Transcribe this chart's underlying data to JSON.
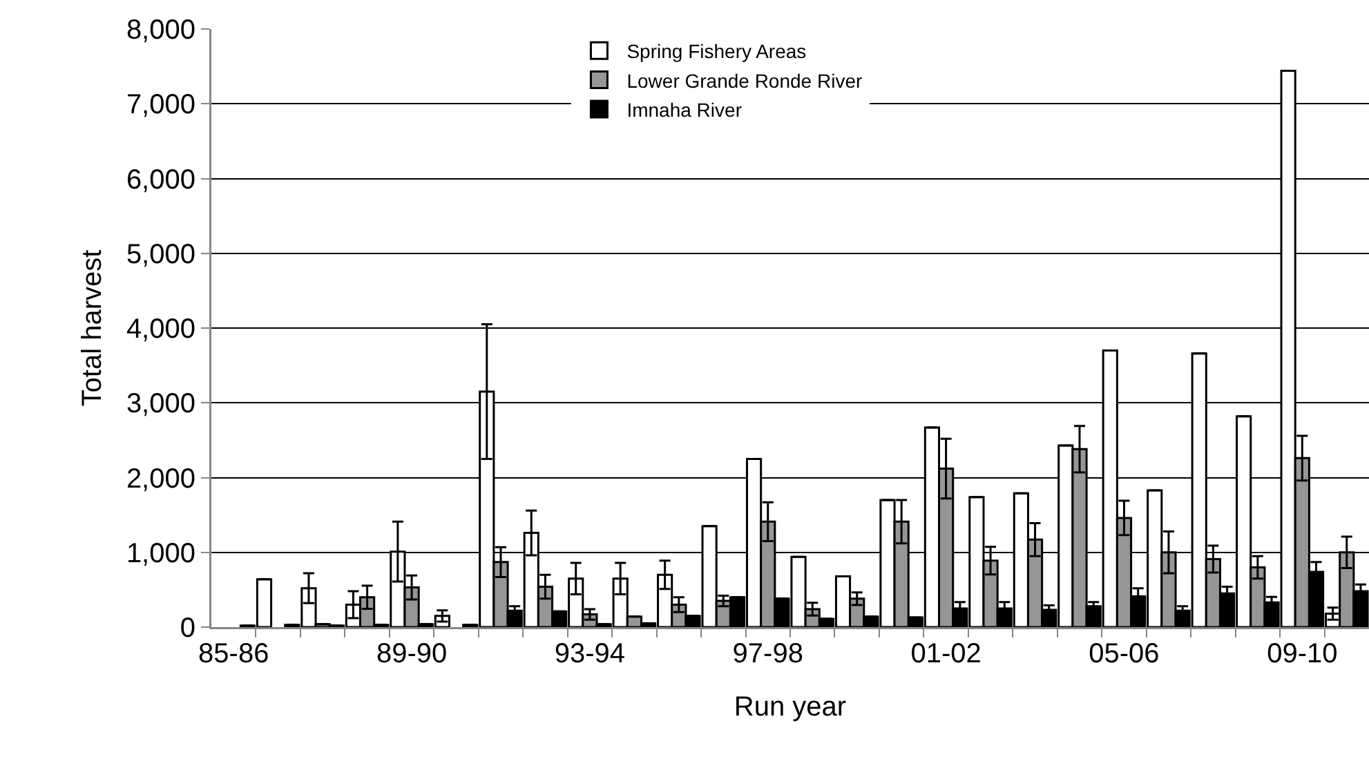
{
  "chart_data": {
    "type": "bar",
    "xlabel": "Run year",
    "ylabel": "Total harvest",
    "categories": [
      "85-86",
      null,
      null,
      null,
      "89-90",
      null,
      null,
      null,
      "93-94",
      null,
      null,
      null,
      "97-98",
      null,
      null,
      null,
      "01-02",
      null,
      null,
      null,
      "05-06",
      null,
      null,
      null,
      "09-10",
      null
    ],
    "series": [
      {
        "name": "Spring Fishery Areas",
        "color": "#ffffff",
        "values": [
          null,
          640,
          520,
          300,
          1010,
          150,
          3150,
          1260,
          650,
          650,
          700,
          1350,
          2250,
          940,
          680,
          1700,
          2670,
          1740,
          1790,
          2430,
          3700,
          1830,
          3660,
          2820,
          7440,
          180
        ],
        "errors": [
          null,
          null,
          200,
          180,
          400,
          75,
          900,
          300,
          210,
          210,
          190,
          null,
          null,
          null,
          null,
          null,
          null,
          null,
          null,
          null,
          null,
          null,
          null,
          null,
          null,
          80
        ]
      },
      {
        "name": "Lower Grande Ronde River",
        "color": "#969696",
        "values": [
          null,
          null,
          40,
          400,
          530,
          null,
          870,
          540,
          170,
          140,
          300,
          350,
          1410,
          240,
          380,
          1410,
          2120,
          890,
          1170,
          2380,
          1460,
          1000,
          910,
          800,
          2260,
          1000
        ],
        "errors": [
          null,
          null,
          null,
          155,
          160,
          null,
          200,
          160,
          70,
          null,
          100,
          70,
          260,
          85,
          85,
          290,
          400,
          185,
          220,
          310,
          230,
          280,
          180,
          150,
          300,
          210
        ]
      },
      {
        "name": "Imnaha River",
        "color": "#000000",
        "values": [
          20,
          30,
          20,
          30,
          40,
          30,
          220,
          210,
          40,
          50,
          150,
          400,
          380,
          110,
          140,
          130,
          250,
          250,
          230,
          280,
          410,
          220,
          450,
          330,
          740,
          480
        ],
        "errors": [
          null,
          null,
          null,
          null,
          null,
          null,
          60,
          null,
          null,
          null,
          null,
          null,
          null,
          null,
          null,
          null,
          85,
          85,
          60,
          55,
          110,
          60,
          90,
          75,
          130,
          90
        ]
      }
    ],
    "ylim": [
      0,
      8000
    ],
    "yticks": [
      0,
      {
        "value": 1000,
        "label": "1,000"
      },
      {
        "value": 2000,
        "label": "2,000"
      },
      {
        "value": 3000,
        "label": "3,000"
      },
      {
        "value": 4000,
        "label": "4,000"
      },
      {
        "value": 5000,
        "label": "5,000"
      },
      {
        "value": 6000,
        "label": "6,000"
      },
      {
        "value": 7000,
        "label": "7,000"
      },
      {
        "value": 8000,
        "label": "8,000"
      }
    ],
    "grid": "y",
    "legend": "top"
  }
}
